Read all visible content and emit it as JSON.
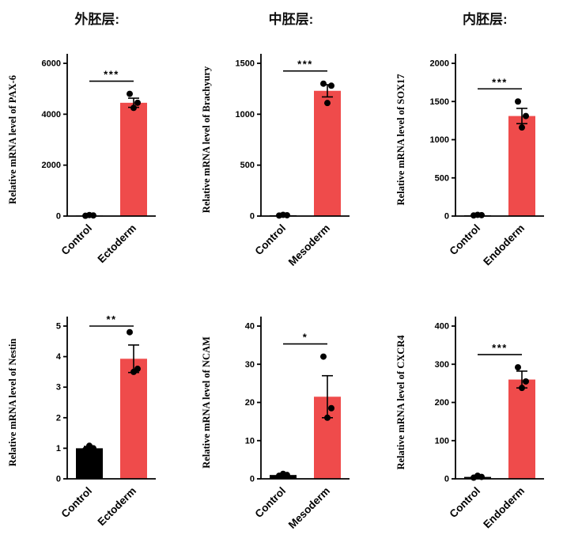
{
  "headers": [
    "外胚层:",
    "中胚层:",
    "内胚层:"
  ],
  "colors": {
    "treatment_bar": "#EF4B4B",
    "control_bar": "#000000",
    "dot": "#000000",
    "axis": "#000000"
  },
  "chart_data": [
    {
      "type": "bar",
      "title": "",
      "xlabel": "",
      "ylabel": "Relative  mRNA level of PAX-6",
      "categories": [
        "Control",
        "Ectoderm"
      ],
      "values": [
        20,
        4450
      ],
      "errors": [
        0,
        180
      ],
      "points": [
        [
          10,
          25,
          40
        ],
        [
          4800,
          4450,
          4250
        ]
      ],
      "significance": "***",
      "ylim": [
        0,
        6000
      ],
      "yticks": [
        0,
        2000,
        4000,
        6000
      ],
      "bar_colors": [
        "#000000",
        "#EF4B4B"
      ],
      "legend": "none",
      "grid": false
    },
    {
      "type": "bar",
      "title": "",
      "xlabel": "",
      "ylabel": "Relative  mRNA level of Brachyury",
      "categories": [
        "Control",
        "Mesoderm"
      ],
      "values": [
        8,
        1230
      ],
      "errors": [
        0,
        60
      ],
      "points": [
        [
          5,
          8,
          12
        ],
        [
          1300,
          1280,
          1110
        ]
      ],
      "significance": "***",
      "ylim": [
        0,
        1500
      ],
      "yticks": [
        0,
        500,
        1000,
        1500
      ],
      "bar_colors": [
        "#000000",
        "#EF4B4B"
      ],
      "legend": "none",
      "grid": false
    },
    {
      "type": "bar",
      "title": "",
      "xlabel": "",
      "ylabel": "Relative  mRNA level of SOX17",
      "categories": [
        "Control",
        "Endoderm"
      ],
      "values": [
        10,
        1310
      ],
      "errors": [
        0,
        100
      ],
      "points": [
        [
          8,
          12,
          16
        ],
        [
          1500,
          1310,
          1160
        ]
      ],
      "significance": "***",
      "ylim": [
        0,
        2000
      ],
      "yticks": [
        0,
        500,
        1000,
        1500,
        2000
      ],
      "bar_colors": [
        "#000000",
        "#EF4B4B"
      ],
      "legend": "none",
      "grid": false
    },
    {
      "type": "bar",
      "title": "",
      "xlabel": "",
      "ylabel": "Relative  mRNA level of Nestin",
      "categories": [
        "Control",
        "Ectoderm"
      ],
      "values": [
        1.0,
        3.93
      ],
      "errors": [
        0.06,
        0.45
      ],
      "points": [
        [
          0.95,
          1.0,
          1.08
        ],
        [
          4.8,
          3.6,
          3.5
        ]
      ],
      "significance": "**",
      "ylim": [
        0,
        5
      ],
      "yticks": [
        0,
        1,
        2,
        3,
        4,
        5
      ],
      "bar_colors": [
        "#000000",
        "#EF4B4B"
      ],
      "legend": "none",
      "grid": false
    },
    {
      "type": "bar",
      "title": "",
      "xlabel": "",
      "ylabel": "Relative  mRNA level of NCAM",
      "categories": [
        "Control",
        "Mesoderm"
      ],
      "values": [
        1.0,
        21.5
      ],
      "errors": [
        0.3,
        5.5
      ],
      "points": [
        [
          0.8,
          1.0,
          1.3
        ],
        [
          32,
          18.5,
          16
        ]
      ],
      "significance": "*",
      "ylim": [
        0,
        40
      ],
      "yticks": [
        0,
        10,
        20,
        30,
        40
      ],
      "bar_colors": [
        "#000000",
        "#EF4B4B"
      ],
      "legend": "none",
      "grid": false
    },
    {
      "type": "bar",
      "title": "",
      "xlabel": "",
      "ylabel": "Relative  mRNA level of CXCR4",
      "categories": [
        "Control",
        "Endoderm"
      ],
      "values": [
        5,
        260
      ],
      "errors": [
        2,
        22
      ],
      "points": [
        [
          3,
          5,
          8
        ],
        [
          292,
          255,
          238
        ]
      ],
      "significance": "***",
      "ylim": [
        0,
        400
      ],
      "yticks": [
        0,
        100,
        200,
        300,
        400
      ],
      "bar_colors": [
        "#000000",
        "#EF4B4B"
      ],
      "legend": "none",
      "grid": false
    }
  ]
}
